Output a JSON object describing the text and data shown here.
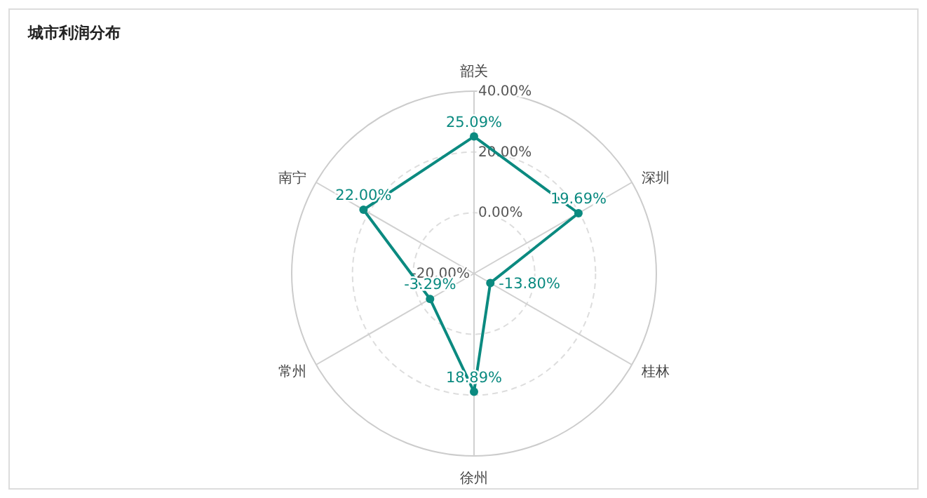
{
  "chart_data": {
    "type": "radar",
    "title": "城市利润分布",
    "categories": [
      "韶关",
      "深圳",
      "桂林",
      "徐州",
      "常州",
      "南宁"
    ],
    "series": [
      {
        "color": "#0b8a80",
        "values": [
          25.09,
          19.69,
          -13.8,
          18.89,
          -3.29,
          22.0
        ],
        "value_labels": [
          "25.09%",
          "19.69%",
          "-13.80%",
          "18.89%",
          "-3.29%",
          "22.00%"
        ]
      }
    ],
    "ylim": [
      -20,
      40
    ],
    "yticks": [
      {
        "value": -20,
        "label": "-20.00%"
      },
      {
        "value": 0,
        "label": "0.00%"
      },
      {
        "value": 20,
        "label": "20.00%"
      },
      {
        "value": 40,
        "label": "40.00%"
      }
    ],
    "marker": "circle",
    "line_style": "solid"
  }
}
